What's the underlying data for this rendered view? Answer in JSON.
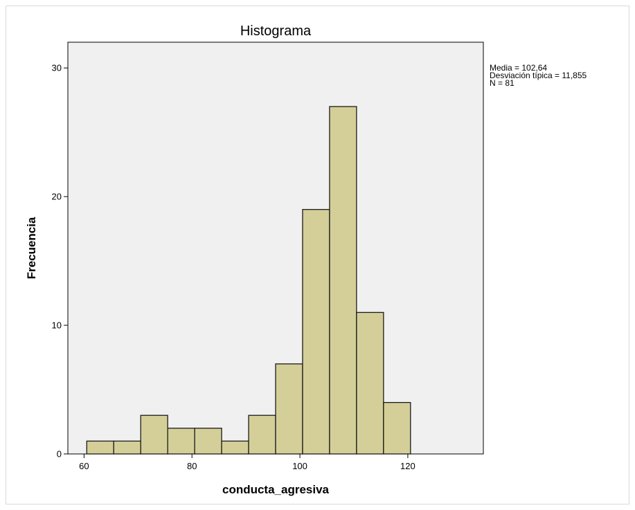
{
  "chart_data": {
    "type": "bar",
    "title": "Histograma",
    "xlabel": "conducta_agresiva",
    "ylabel": "Frecuencia",
    "xlim": [
      57,
      134
    ],
    "ylim": [
      0,
      32
    ],
    "xticks": [
      60,
      80,
      100,
      120
    ],
    "yticks": [
      0,
      10,
      20,
      30
    ],
    "bin_width": 5,
    "bins": [
      {
        "x0": 60.5,
        "x1": 65.5,
        "value": 1
      },
      {
        "x0": 65.5,
        "x1": 70.5,
        "value": 1
      },
      {
        "x0": 70.5,
        "x1": 75.5,
        "value": 3
      },
      {
        "x0": 75.5,
        "x1": 80.5,
        "value": 2
      },
      {
        "x0": 80.5,
        "x1": 85.5,
        "value": 2
      },
      {
        "x0": 85.5,
        "x1": 90.5,
        "value": 1
      },
      {
        "x0": 90.5,
        "x1": 95.5,
        "value": 3
      },
      {
        "x0": 95.5,
        "x1": 100.5,
        "value": 7
      },
      {
        "x0": 100.5,
        "x1": 105.5,
        "value": 19
      },
      {
        "x0": 105.5,
        "x1": 110.5,
        "value": 27
      },
      {
        "x0": 110.5,
        "x1": 115.5,
        "value": 11
      },
      {
        "x0": 115.5,
        "x1": 120.5,
        "value": 4
      }
    ],
    "stats": [
      "Media = 102,64",
      "Desviación típica = 11,855",
      "N = 81"
    ],
    "grid": false,
    "legend": "top-right",
    "colors": {
      "bar_fill": "#d4cf98",
      "bar_stroke": "#1a1a1a",
      "plot_bg": "#f0f0f0"
    }
  }
}
